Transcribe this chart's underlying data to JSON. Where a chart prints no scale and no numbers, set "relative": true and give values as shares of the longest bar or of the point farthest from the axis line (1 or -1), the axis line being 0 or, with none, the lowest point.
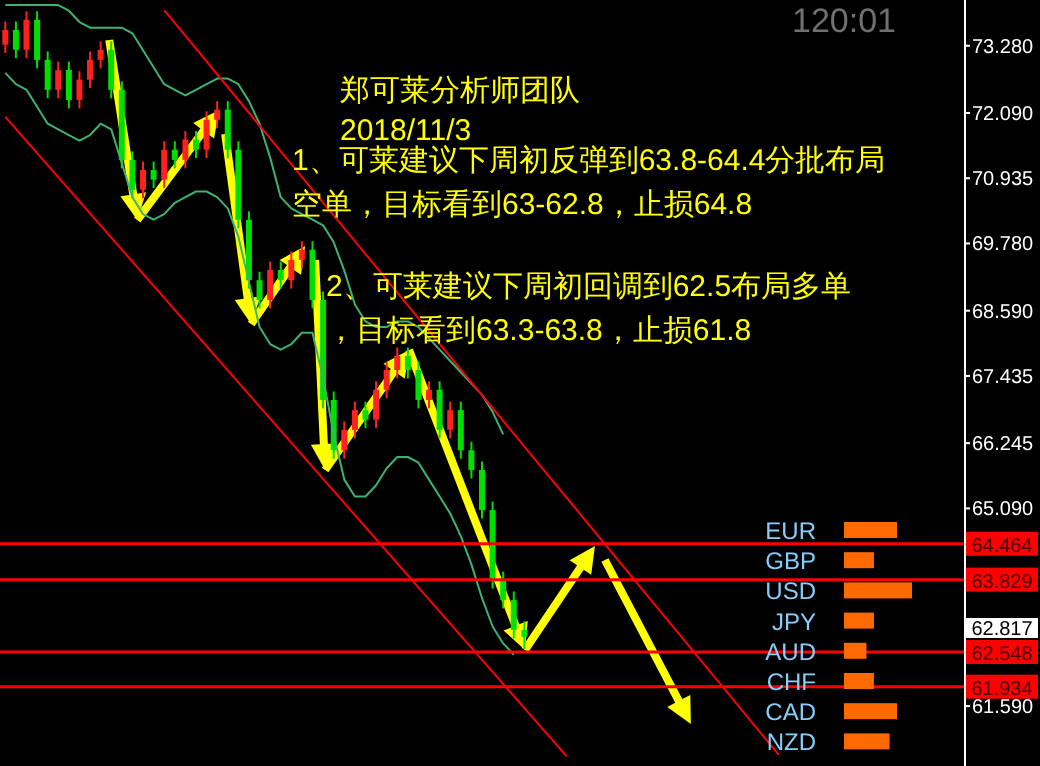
{
  "chart_data": [
    {
      "type": "candlestick",
      "title": "郑可莱分析师团队",
      "annotations": [
        "2018/11/3",
        "1、可莱建议下周初反弹到63.8-64.4分批布局空单，目标看到63-62.8，止损64.8",
        "2、可莱建议下周初回调到62.5布局多单，目标看到63.3-63.8，止损61.8",
        "120:01",
        "62.817"
      ],
      "categories": [
        null,
        null,
        null,
        null,
        null,
        null,
        null,
        null,
        null,
        null,
        null,
        null,
        null,
        null,
        null,
        null,
        null,
        null,
        null,
        null,
        null,
        null,
        null,
        null,
        null,
        null,
        null,
        null,
        null,
        null,
        null,
        null,
        null,
        null,
        null,
        null,
        null,
        null,
        null,
        null,
        null,
        null,
        null,
        null,
        null,
        null,
        null,
        null,
        null,
        null,
        null,
        null,
        null,
        null,
        null,
        null,
        null,
        null,
        null,
        null,
        null,
        null,
        null,
        null,
        null,
        null,
        null,
        null,
        null,
        null,
        null,
        null,
        null,
        null,
        null,
        null,
        null,
        null,
        null,
        null,
        null,
        null,
        null,
        null,
        null,
        null,
        null,
        null,
        null,
        null,
        null
      ],
      "ohlc": [
        [
          73.3,
          73.71,
          73.15,
          73.56
        ],
        [
          73.56,
          73.71,
          73.06,
          73.21
        ],
        [
          73.21,
          73.89,
          73.06,
          73.74
        ],
        [
          73.74,
          73.89,
          72.88,
          73.03
        ],
        [
          73.03,
          73.18,
          72.35,
          72.5
        ],
        [
          72.5,
          73.0,
          72.35,
          72.85
        ],
        [
          72.85,
          73.0,
          72.17,
          72.32
        ],
        [
          72.32,
          72.83,
          72.17,
          72.68
        ],
        [
          72.68,
          73.18,
          72.53,
          73.03
        ],
        [
          73.03,
          73.36,
          72.88,
          73.21
        ],
        [
          73.21,
          73.36,
          72.35,
          72.5
        ],
        [
          72.5,
          72.65,
          71.11,
          71.26
        ],
        [
          71.26,
          71.41,
          70.58,
          70.73
        ],
        [
          70.73,
          71.23,
          70.58,
          71.08
        ],
        [
          71.08,
          71.23,
          70.76,
          70.91
        ],
        [
          70.91,
          71.59,
          70.76,
          71.44
        ],
        [
          71.44,
          71.59,
          71.11,
          71.26
        ],
        [
          71.26,
          71.77,
          71.11,
          71.62
        ],
        [
          71.62,
          71.77,
          71.29,
          71.44
        ],
        [
          71.44,
          72.12,
          71.29,
          71.97
        ],
        [
          71.97,
          72.3,
          71.82,
          72.15
        ],
        [
          72.15,
          72.3,
          71.29,
          71.44
        ],
        [
          71.44,
          71.59,
          70.05,
          70.2
        ],
        [
          70.2,
          70.35,
          68.98,
          69.13
        ],
        [
          69.13,
          69.28,
          68.63,
          68.78
        ],
        [
          68.78,
          69.46,
          68.63,
          69.31
        ],
        [
          69.31,
          69.46,
          68.98,
          69.13
        ],
        [
          69.13,
          69.64,
          68.98,
          69.49
        ],
        [
          69.49,
          69.82,
          69.34,
          69.67
        ],
        [
          69.67,
          69.82,
          68.63,
          68.78
        ],
        [
          68.78,
          68.93,
          66.86,
          67.01
        ],
        [
          67.01,
          67.16,
          65.97,
          66.12
        ],
        [
          66.12,
          66.63,
          65.97,
          66.48
        ],
        [
          66.48,
          66.98,
          66.33,
          66.83
        ],
        [
          66.83,
          66.98,
          66.51,
          66.66
        ],
        [
          66.66,
          67.34,
          66.51,
          67.19
        ],
        [
          67.19,
          67.69,
          67.04,
          67.54
        ],
        [
          67.54,
          67.94,
          67.39,
          67.79
        ],
        [
          67.79,
          67.94,
          67.39,
          67.54
        ],
        [
          67.54,
          67.69,
          66.86,
          67.01
        ],
        [
          67.01,
          67.34,
          66.86,
          67.19
        ],
        [
          67.19,
          67.34,
          66.33,
          66.48
        ],
        [
          66.48,
          66.98,
          66.33,
          66.83
        ],
        [
          66.83,
          66.98,
          65.97,
          66.12
        ],
        [
          66.12,
          66.27,
          65.62,
          65.77
        ],
        [
          65.77,
          65.92,
          64.91,
          65.06
        ],
        [
          65.06,
          65.21,
          63.67,
          63.82
        ],
        [
          63.82,
          63.97,
          63.32,
          63.47
        ],
        [
          63.47,
          63.62,
          62.79,
          62.94
        ],
        [
          62.94,
          63.09,
          62.6,
          62.817
        ],
        null,
        null,
        null,
        null,
        null,
        null,
        null,
        null,
        null,
        null,
        null,
        null,
        null,
        null,
        null,
        null,
        null,
        null,
        null,
        null,
        null,
        null,
        null,
        null,
        null,
        null,
        null,
        null,
        null,
        null,
        null,
        null,
        null,
        null,
        null,
        null,
        null,
        null,
        null,
        null,
        null
      ],
      "series": [
        {
          "type": "line",
          "color": "#3cb371",
          "values": [
            74.0,
            74.0,
            74.0,
            74.0,
            74.0,
            74.0,
            73.9,
            73.7,
            73.6,
            73.6,
            73.6,
            73.6,
            73.5,
            73.2,
            72.9,
            72.6,
            72.5,
            72.4,
            72.5,
            72.6,
            72.7,
            72.7,
            72.6,
            72.3,
            71.9,
            71.3,
            70.6,
            70.4,
            70.3,
            70.2,
            70.1,
            69.8,
            69.3,
            68.7,
            68.4,
            68.3,
            68.3,
            68.4,
            68.4,
            68.3,
            68.1,
            67.9,
            67.7,
            67.5,
            67.3,
            67.1,
            66.8,
            66.4,
            null,
            null,
            null,
            null,
            null,
            null,
            null,
            null,
            null,
            null,
            null,
            null,
            null,
            null,
            null,
            null,
            null,
            null,
            null,
            null,
            null,
            null,
            null,
            null,
            null,
            null,
            null,
            null,
            null,
            null,
            null,
            null,
            null,
            null,
            null,
            null,
            null,
            null,
            null,
            null,
            null,
            null,
            null
          ]
        },
        {
          "type": "line",
          "color": "#3cb371",
          "values": [
            72.8,
            72.6,
            72.5,
            72.2,
            71.9,
            71.8,
            71.7,
            71.6,
            71.7,
            71.9,
            71.8,
            71.2,
            70.6,
            70.3,
            70.2,
            70.3,
            70.5,
            70.6,
            70.7,
            70.7,
            70.6,
            70.4,
            69.9,
            69.1,
            68.3,
            68.0,
            67.9,
            68.0,
            68.2,
            68.2,
            67.4,
            66.4,
            65.6,
            65.3,
            65.3,
            65.5,
            65.8,
            66.0,
            66.0,
            65.9,
            65.6,
            65.3,
            65.0,
            64.6,
            64.1,
            63.5,
            63.0,
            62.7,
            62.5,
            null,
            null,
            null,
            null,
            null,
            null,
            null,
            null,
            null,
            null,
            null,
            null,
            null,
            null,
            null,
            null,
            null,
            null,
            null,
            null,
            null,
            null,
            null,
            null,
            null,
            null,
            null,
            null,
            null,
            null,
            null,
            null,
            null,
            null,
            null,
            null,
            null,
            null,
            null,
            null,
            null,
            null
          ]
        },
        {
          "type": "line",
          "color": "#ff0000",
          "values": [
            null,
            null,
            null,
            null,
            null,
            null,
            null,
            null,
            null,
            null,
            null,
            null,
            null,
            null,
            null,
            73.91,
            null,
            null,
            null,
            null,
            null,
            null,
            null,
            null,
            null,
            null,
            null,
            null,
            null,
            null,
            null,
            null,
            null,
            null,
            null,
            null,
            null,
            null,
            null,
            null,
            68.23,
            null,
            null,
            null,
            null,
            null,
            null,
            null,
            null,
            null,
            null,
            null,
            null,
            null,
            null,
            null,
            null,
            null,
            null,
            null,
            null,
            null,
            null,
            null,
            null,
            null,
            null,
            null,
            null,
            null,
            null,
            null,
            null,
            60.73,
            null,
            null,
            null,
            null,
            null,
            null,
            null,
            null,
            null,
            null,
            null,
            null,
            null,
            null,
            null,
            null,
            null
          ]
        },
        {
          "type": "line",
          "color": "#ff0000",
          "values": [
            72.02,
            null,
            null,
            null,
            null,
            null,
            null,
            null,
            null,
            null,
            null,
            null,
            null,
            null,
            null,
            null,
            null,
            null,
            null,
            null,
            null,
            null,
            null,
            null,
            null,
            66.68,
            null,
            null,
            null,
            null,
            null,
            null,
            null,
            null,
            null,
            null,
            null,
            null,
            null,
            null,
            null,
            null,
            null,
            null,
            null,
            null,
            null,
            null,
            null,
            null,
            null,
            null,
            null,
            60.7,
            null,
            null,
            null,
            null,
            null,
            null,
            null,
            null,
            null,
            null,
            null,
            null,
            null,
            null,
            null,
            null,
            null,
            null,
            null,
            null,
            null,
            null,
            null,
            null,
            null,
            null,
            null,
            null,
            null,
            null,
            null,
            null,
            null,
            null,
            null,
            null,
            null
          ]
        }
      ],
      "ref_lines": [
        {
          "axis": "y",
          "value": 64.464,
          "label": "64.464",
          "color": "#ff0000"
        },
        {
          "axis": "y",
          "value": 63.829,
          "label": "63.829",
          "color": "#ff0000"
        },
        {
          "axis": "y",
          "value": 62.548,
          "label": "62.548",
          "color": "#ff0000"
        },
        {
          "axis": "y",
          "value": 61.934,
          "label": "61.934",
          "color": "#ff0000"
        }
      ],
      "ylim": [
        60.53,
        74.09
      ],
      "yticks": [
        {
          "value": 73.28,
          "label": "73.280"
        },
        {
          "value": 72.09,
          "label": "72.090"
        },
        {
          "value": 70.935,
          "label": "70.935"
        },
        {
          "value": 69.78,
          "label": "69.780"
        },
        {
          "value": 68.59,
          "label": "68.590"
        },
        {
          "value": 67.435,
          "label": "67.435"
        },
        {
          "value": 66.245,
          "label": "66.245"
        },
        {
          "value": 65.09,
          "label": "65.090"
        },
        {
          "value": 61.59,
          "label": "61.590"
        }
      ],
      "tick_labels": "y"
    },
    {
      "type": "bar",
      "orientation": "horizontal",
      "relative": true,
      "categories": [
        "EUR",
        "GBP",
        "USD",
        "JPY",
        "AUD",
        "CHF",
        "CAD",
        "NZD"
      ],
      "values": [
        0.78,
        0.44,
        1,
        0.44,
        0.33,
        0.44,
        0.78,
        0.67
      ],
      "color": "#ff6a00"
    }
  ]
}
